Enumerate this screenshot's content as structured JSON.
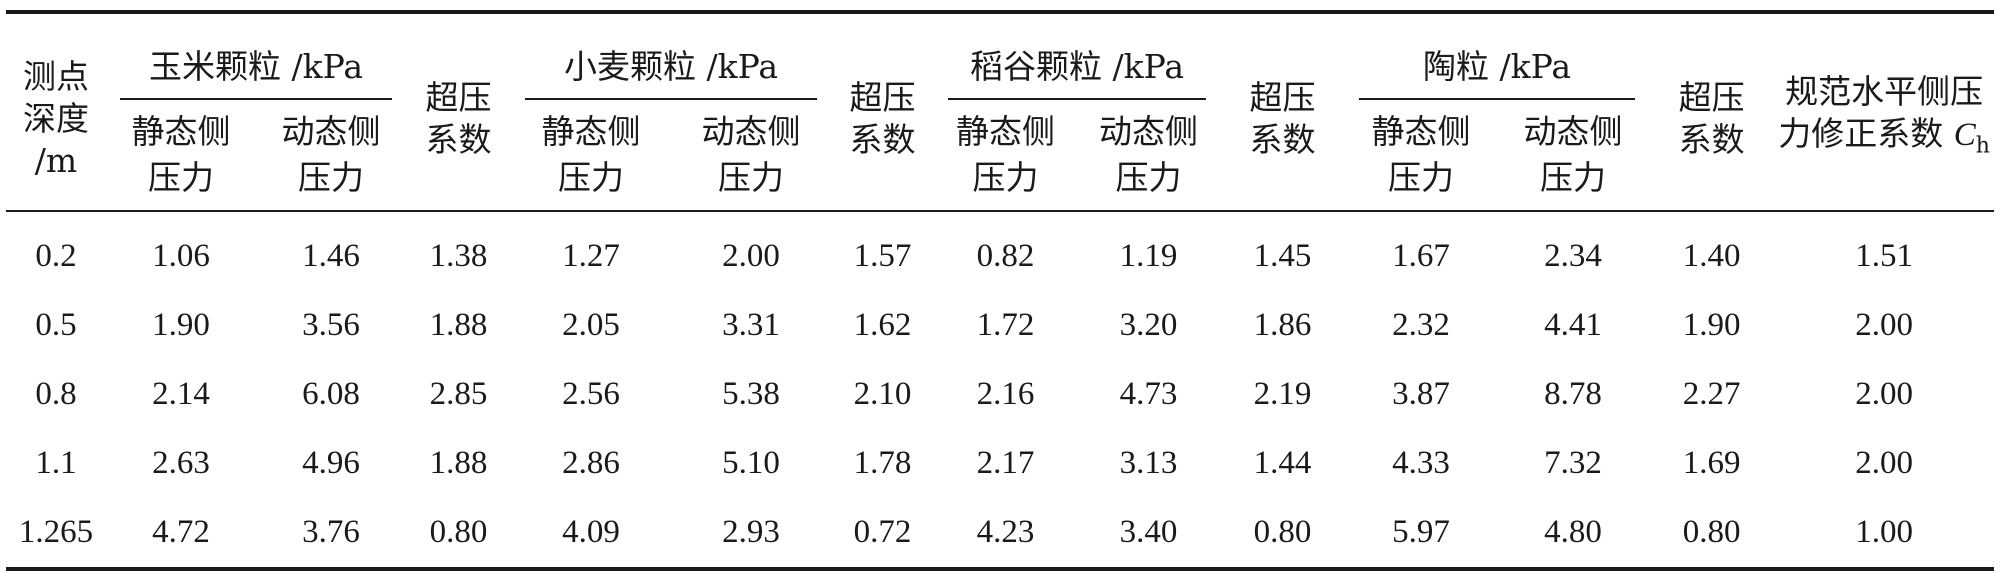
{
  "header": {
    "depth": [
      "测点",
      "深度",
      "/m"
    ],
    "corn_group": "玉米颗粒 /kPa",
    "wheat_group": "小麦颗粒 /kPa",
    "rice_group": "稻谷颗粒 /kPa",
    "ceramsite_group": "陶粒 /kPa",
    "static_pressure": [
      "静态侧",
      "压力"
    ],
    "dynamic_pressure": [
      "动态侧",
      "压力"
    ],
    "overpressure_coef": [
      "超压",
      "系数"
    ],
    "code_coef": [
      "规范水平侧压",
      "力修正系数",
      "C",
      "h"
    ]
  },
  "rows": [
    [
      "0.2",
      "1.06",
      "1.46",
      "1.38",
      "1.27",
      "2.00",
      "1.57",
      "0.82",
      "1.19",
      "1.45",
      "1.67",
      "2.34",
      "1.40",
      "1.51"
    ],
    [
      "0.5",
      "1.90",
      "3.56",
      "1.88",
      "2.05",
      "3.31",
      "1.62",
      "1.72",
      "3.20",
      "1.86",
      "2.32",
      "4.41",
      "1.90",
      "2.00"
    ],
    [
      "0.8",
      "2.14",
      "6.08",
      "2.85",
      "2.56",
      "5.38",
      "2.10",
      "2.16",
      "4.73",
      "2.19",
      "3.87",
      "8.78",
      "2.27",
      "2.00"
    ],
    [
      "1.1",
      "2.63",
      "4.96",
      "1.88",
      "2.86",
      "5.10",
      "1.78",
      "2.17",
      "3.13",
      "1.44",
      "4.33",
      "7.32",
      "1.69",
      "2.00"
    ],
    [
      "1.265",
      "4.72",
      "3.76",
      "0.80",
      "4.09",
      "2.93",
      "0.72",
      "4.23",
      "3.40",
      "0.80",
      "5.97",
      "4.80",
      "0.80",
      "1.00"
    ]
  ]
}
